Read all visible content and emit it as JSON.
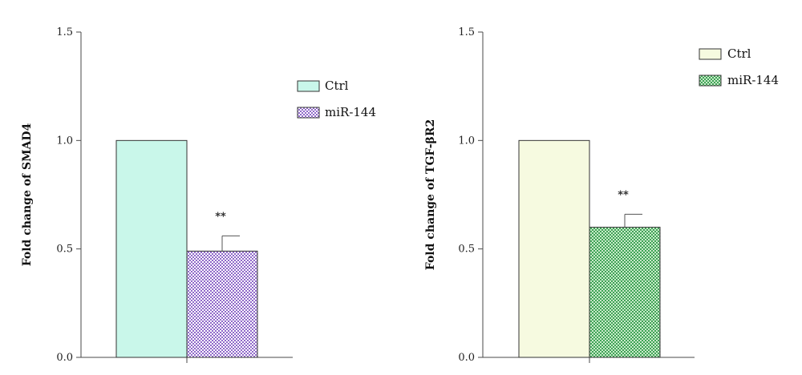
{
  "chart_data": [
    {
      "type": "bar",
      "ylabel": "Fold change of SMAD4",
      "ylim": [
        0,
        1.5
      ],
      "yticks": [
        "0.0",
        "0.5",
        "1.0",
        "1.5"
      ],
      "series": [
        {
          "name": "Ctrl",
          "value": 1.0,
          "error": 0,
          "color": "#c9f7ea",
          "pattern": "solid",
          "annotation": ""
        },
        {
          "name": "miR-144",
          "value": 0.49,
          "error": 0.07,
          "color": "#8f68c9",
          "pattern": "checker",
          "annotation": "**"
        }
      ],
      "legend": "right"
    },
    {
      "type": "bar",
      "ylabel": "Fold change of TGF-βR2",
      "ylim": [
        0,
        1.5
      ],
      "yticks": [
        "0.0",
        "0.5",
        "1.0",
        "1.5"
      ],
      "series": [
        {
          "name": "Ctrl",
          "value": 1.0,
          "error": 0,
          "color": "#f6fae0",
          "pattern": "solid",
          "annotation": ""
        },
        {
          "name": "miR-144",
          "value": 0.6,
          "error": 0.06,
          "color": "#3fa256",
          "pattern": "checker",
          "annotation": "**"
        }
      ],
      "legend": "top-right"
    }
  ]
}
